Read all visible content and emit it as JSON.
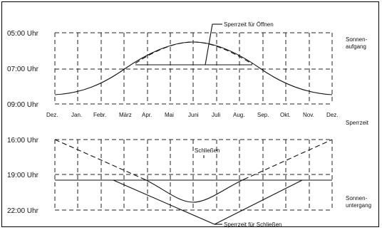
{
  "top": {
    "y_labels": [
      "05:00 Uhr",
      "07:00 Uhr",
      "09:00 Uhr"
    ],
    "right_label_line1": "Sonnen-",
    "right_label_line2": "aufgang",
    "annotation": "Sperrzeit für Öffnen"
  },
  "months": [
    "Dez.",
    "Jan.",
    "Febr.",
    "März",
    "Apr.",
    "Mai",
    "Juni",
    "Juli",
    "Aug.",
    "Sep.",
    "Okt.",
    "Nov.",
    "Dez."
  ],
  "middle_right_label": "Sperrzeit",
  "bottom": {
    "y_labels": [
      "16:00 Uhr",
      "19:00 Uhr",
      "22:00 Uhr"
    ],
    "inner_label": "Schließen",
    "right_label_line1": "Sonnen-",
    "right_label_line2": "untergang",
    "annotation": "Sperrzeit für Schließen"
  }
}
